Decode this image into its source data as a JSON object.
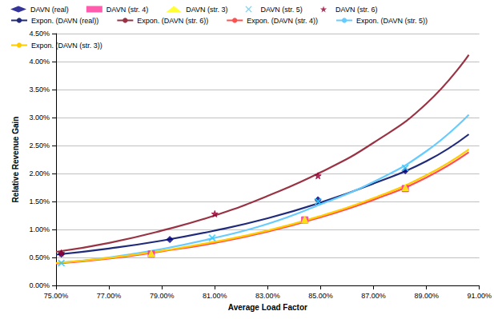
{
  "chart_data": {
    "type": "scatter",
    "xlabel": "Average Load Factor",
    "ylabel": "Relative Revenue Gain",
    "xlim": [
      75,
      91
    ],
    "xticks": [
      {
        "value": 75,
        "label": "75.00%"
      },
      {
        "value": 77,
        "label": "77.00%"
      },
      {
        "value": 79,
        "label": "79.00%"
      },
      {
        "value": 81,
        "label": "81.00%"
      },
      {
        "value": 83,
        "label": "83.00%"
      },
      {
        "value": 85,
        "label": "85.00%"
      },
      {
        "value": 87,
        "label": "87.00%"
      },
      {
        "value": 89,
        "label": "89.00%"
      },
      {
        "value": 91,
        "label": "91.00%"
      }
    ],
    "ylim": [
      0,
      4.5
    ],
    "yticks": [
      {
        "value": 0,
        "label": "0.00%"
      },
      {
        "value": 0.5,
        "label": "0.50%"
      },
      {
        "value": 1,
        "label": "1.00%"
      },
      {
        "value": 1.5,
        "label": "1.50%"
      },
      {
        "value": 2,
        "label": "2.00%"
      },
      {
        "value": 2.5,
        "label": "2.50%"
      },
      {
        "value": 3,
        "label": "3.00%"
      },
      {
        "value": 3.5,
        "label": "3.50%"
      },
      {
        "value": 4,
        "label": "4.00%"
      },
      {
        "value": 4.5,
        "label": "4.50%"
      }
    ],
    "grid": true,
    "legend": "top",
    "series": [
      {
        "name": "DAVN (real)",
        "type": "scatter",
        "marker": "diamond",
        "color": "#000080",
        "x": [
          75.2,
          79.3,
          84.9,
          88.2
        ],
        "values": [
          0.56,
          0.82,
          1.53,
          2.05
        ]
      },
      {
        "name": "DAVN (str. 4)",
        "type": "scatter",
        "marker": "square",
        "color": "#ff3399",
        "x": [
          78.6,
          84.4,
          88.2
        ],
        "values": [
          0.56,
          1.17,
          1.73
        ]
      },
      {
        "name": "DAVN (str. 3)",
        "type": "scatter",
        "marker": "triangle",
        "color": "#ffff00",
        "x": [
          78.6,
          84.4,
          88.2
        ],
        "values": [
          0.57,
          1.18,
          1.75
        ]
      },
      {
        "name": "DAVN (str. 5)",
        "type": "scatter",
        "marker": "x",
        "color": "#33ccff",
        "x": [
          75.2,
          80.9,
          84.9,
          88.2
        ],
        "values": [
          0.4,
          0.85,
          1.5,
          2.1
        ]
      },
      {
        "name": "DAVN (str. 6)",
        "type": "scatter",
        "marker": "star",
        "color": "#990033",
        "x": [
          75.2,
          81.0,
          84.9
        ],
        "values": [
          0.58,
          1.28,
          1.96
        ]
      },
      {
        "name": "Expon. (DAVN (real))",
        "type": "line",
        "line_style": "solid",
        "color": "#1f2a7a",
        "x": [
          75,
          77,
          79,
          81,
          83,
          85,
          87,
          89,
          90.6
        ],
        "values": [
          0.55,
          0.66,
          0.8,
          0.98,
          1.2,
          1.48,
          1.82,
          2.22,
          2.7
        ]
      },
      {
        "name": "Expon. (DAVN (str. 6))",
        "type": "line",
        "line_style": "solid",
        "color": "#993344",
        "x": [
          75,
          77,
          79,
          81,
          83,
          85,
          87,
          89,
          90.6
        ],
        "values": [
          0.6,
          0.76,
          0.98,
          1.25,
          1.6,
          2.02,
          2.55,
          3.25,
          4.12
        ]
      },
      {
        "name": "Expon. (DAVN (str. 4))",
        "type": "line",
        "line_style": "solid",
        "color": "#ff5050",
        "x": [
          75,
          77,
          79,
          81,
          83,
          85,
          87,
          89,
          90.6
        ],
        "values": [
          0.39,
          0.48,
          0.61,
          0.76,
          0.96,
          1.22,
          1.53,
          1.93,
          2.38
        ]
      },
      {
        "name": "Expon. (DAVN (str. 5))",
        "type": "line",
        "line_style": "solid",
        "color": "#66ccff",
        "x": [
          75,
          77,
          79,
          81,
          83,
          85,
          87,
          89,
          90.6
        ],
        "values": [
          0.4,
          0.5,
          0.65,
          0.85,
          1.1,
          1.45,
          1.85,
          2.4,
          3.05
        ]
      },
      {
        "name": "Expon. (DAVN (str. 3))",
        "type": "line",
        "line_style": "solid",
        "color": "#ffcc00",
        "x": [
          75,
          77,
          79,
          81,
          83,
          85,
          87,
          89,
          90.6
        ],
        "values": [
          0.4,
          0.49,
          0.62,
          0.78,
          0.98,
          1.24,
          1.56,
          1.97,
          2.43
        ]
      }
    ]
  }
}
